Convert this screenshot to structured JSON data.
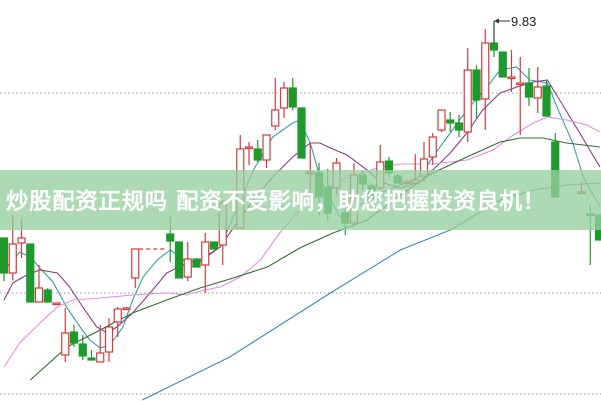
{
  "banner": {
    "text": "炒股配资正规吗 配资不受影响，助您把握投资良机！"
  },
  "chart_data": {
    "type": "candlestick",
    "title": "",
    "xlabel": "",
    "ylabel": "",
    "grid": true,
    "gridlines": [
      9.11,
      7.11,
      6.1
    ],
    "colors": {
      "up": "#d43a3a",
      "down": "#1e9a2c"
    },
    "peak_annotation": {
      "label": "9.83",
      "slot": 56,
      "value": 9.83
    },
    "candles": [
      {
        "slot": 0,
        "o": 7.66,
        "h": 7.66,
        "l": 7.23,
        "c": 7.31
      },
      {
        "slot": 1,
        "o": 7.31,
        "h": 7.89,
        "l": 7.24,
        "c": 7.6
      },
      {
        "slot": 2,
        "o": 7.61,
        "h": 7.85,
        "l": 7.46,
        "c": 7.66
      },
      {
        "slot": 3,
        "o": 7.6,
        "h": 7.6,
        "l": 7.02,
        "c": 7.02
      },
      {
        "slot": 4,
        "o": 7.02,
        "h": 7.39,
        "l": 7.02,
        "c": 7.16
      },
      {
        "slot": 5,
        "o": 7.14,
        "h": 7.16,
        "l": 7.02,
        "c": 7.02
      },
      {
        "slot": 6,
        "o": 7.01,
        "h": 7.01,
        "l": 7.01,
        "c": 7.01
      },
      {
        "slot": 7,
        "o": 6.49,
        "h": 6.96,
        "l": 6.42,
        "c": 6.71
      },
      {
        "slot": 8,
        "o": 6.72,
        "h": 6.79,
        "l": 6.57,
        "c": 6.61
      },
      {
        "slot": 9,
        "o": 6.6,
        "h": 6.69,
        "l": 6.44,
        "c": 6.48
      },
      {
        "slot": 10,
        "o": 6.46,
        "h": 6.54,
        "l": 6.44,
        "c": 6.44
      },
      {
        "slot": 11,
        "o": 6.42,
        "h": 6.79,
        "l": 6.42,
        "c": 6.51
      },
      {
        "slot": 12,
        "o": 6.52,
        "h": 6.86,
        "l": 6.42,
        "c": 6.77
      },
      {
        "slot": 13,
        "o": 6.82,
        "h": 6.97,
        "l": 6.67,
        "c": 6.95
      },
      {
        "slot": 14,
        "o": 6.96,
        "h": 6.97,
        "l": 6.96,
        "c": 6.96
      },
      {
        "slot": 15,
        "o": 7.26,
        "h": 7.55,
        "l": 7.16,
        "c": 7.55
      },
      {
        "slot": 19,
        "o": 7.7,
        "h": 7.88,
        "l": 7.42,
        "c": 7.63
      },
      {
        "slot": 20,
        "o": 7.62,
        "h": 7.62,
        "l": 7.26,
        "c": 7.26
      },
      {
        "slot": 21,
        "o": 7.27,
        "h": 7.62,
        "l": 7.23,
        "c": 7.45
      },
      {
        "slot": 22,
        "o": 7.45,
        "h": 7.45,
        "l": 7.37,
        "c": 7.37
      },
      {
        "slot": 23,
        "o": 7.39,
        "h": 7.71,
        "l": 7.11,
        "c": 7.62
      },
      {
        "slot": 24,
        "o": 7.62,
        "h": 7.62,
        "l": 7.55,
        "c": 7.55
      },
      {
        "slot": 25,
        "o": 7.59,
        "h": 8.04,
        "l": 7.39,
        "c": 8.01
      },
      {
        "slot": 27,
        "o": 7.76,
        "h": 8.69,
        "l": 7.76,
        "c": 8.55
      },
      {
        "slot": 28,
        "o": 8.56,
        "h": 8.62,
        "l": 8.39,
        "c": 8.57
      },
      {
        "slot": 29,
        "o": 8.55,
        "h": 8.64,
        "l": 8.42,
        "c": 8.44
      },
      {
        "slot": 30,
        "o": 8.44,
        "h": 8.69,
        "l": 8.36,
        "c": 8.69
      },
      {
        "slot": 31,
        "o": 8.78,
        "h": 9.26,
        "l": 8.74,
        "c": 8.94
      },
      {
        "slot": 32,
        "o": 8.96,
        "h": 9.22,
        "l": 8.86,
        "c": 9.16
      },
      {
        "slot": 33,
        "o": 9.16,
        "h": 9.26,
        "l": 8.94,
        "c": 8.97
      },
      {
        "slot": 34,
        "o": 8.96,
        "h": 8.96,
        "l": 8.46,
        "c": 8.46
      },
      {
        "slot": 35,
        "o": 8.31,
        "h": 8.61,
        "l": 8.11,
        "c": 8.32
      },
      {
        "slot": 36,
        "o": 8.31,
        "h": 8.41,
        "l": 7.89,
        "c": 8.07
      },
      {
        "slot": 37,
        "o": 8.17,
        "h": 8.35,
        "l": 7.84,
        "c": 7.91
      },
      {
        "slot": 38,
        "o": 8.16,
        "h": 8.46,
        "l": 8.09,
        "c": 8.41
      },
      {
        "slot": 39,
        "o": 7.91,
        "h": 7.97,
        "l": 7.69,
        "c": 7.81
      },
      {
        "slot": 40,
        "o": 7.81,
        "h": 8.41,
        "l": 7.79,
        "c": 8.29
      },
      {
        "slot": 41,
        "o": 8.29,
        "h": 8.33,
        "l": 8.14,
        "c": 8.2
      },
      {
        "slot": 42,
        "o": 8.18,
        "h": 8.2,
        "l": 8.03,
        "c": 8.05
      },
      {
        "slot": 43,
        "o": 8.16,
        "h": 8.59,
        "l": 8.14,
        "c": 8.42
      },
      {
        "slot": 44,
        "o": 8.43,
        "h": 8.47,
        "l": 8.27,
        "c": 8.31
      },
      {
        "slot": 45,
        "o": 8.28,
        "h": 8.3,
        "l": 8.21,
        "c": 8.21
      },
      {
        "slot": 46,
        "o": 8.21,
        "h": 8.24,
        "l": 8.19,
        "c": 8.22
      },
      {
        "slot": 47,
        "o": 8.21,
        "h": 8.5,
        "l": 8.2,
        "c": 8.24
      },
      {
        "slot": 48,
        "o": 8.28,
        "h": 8.62,
        "l": 8.22,
        "c": 8.45
      },
      {
        "slot": 49,
        "o": 8.47,
        "h": 8.71,
        "l": 8.39,
        "c": 8.67
      },
      {
        "slot": 50,
        "o": 8.74,
        "h": 8.94,
        "l": 8.72,
        "c": 8.94
      },
      {
        "slot": 51,
        "o": 8.84,
        "h": 8.92,
        "l": 8.72,
        "c": 8.81
      },
      {
        "slot": 52,
        "o": 8.81,
        "h": 8.89,
        "l": 8.67,
        "c": 8.74
      },
      {
        "slot": 53,
        "o": 8.72,
        "h": 9.56,
        "l": 8.62,
        "c": 9.34
      },
      {
        "slot": 54,
        "o": 9.34,
        "h": 9.39,
        "l": 8.86,
        "c": 9.04
      },
      {
        "slot": 55,
        "o": 9.05,
        "h": 9.75,
        "l": 8.74,
        "c": 9.61
      },
      {
        "slot": 56,
        "o": 9.61,
        "h": 9.83,
        "l": 9.47,
        "c": 9.54
      },
      {
        "slot": 57,
        "o": 9.52,
        "h": 9.52,
        "l": 9.27,
        "c": 9.27
      },
      {
        "slot": 58,
        "o": 9.26,
        "h": 9.54,
        "l": 9.12,
        "c": 9.27
      },
      {
        "slot": 59,
        "o": 9.2,
        "h": 9.47,
        "l": 8.69,
        "c": 9.21
      },
      {
        "slot": 60,
        "o": 9.21,
        "h": 9.36,
        "l": 8.98,
        "c": 9.07
      },
      {
        "slot": 61,
        "o": 9.06,
        "h": 9.37,
        "l": 8.91,
        "c": 9.17
      },
      {
        "slot": 62,
        "o": 9.18,
        "h": 9.24,
        "l": 8.88,
        "c": 8.88
      },
      {
        "slot": 63,
        "o": 8.62,
        "h": 8.71,
        "l": 8.07,
        "c": 8.07
      },
      {
        "slot": 66,
        "o": 8.12,
        "h": 8.22,
        "l": 8.1,
        "c": 8.12
      },
      {
        "slot": 67,
        "o": 7.9,
        "h": 7.99,
        "l": 7.39,
        "c": 7.89
      },
      {
        "slot": 68,
        "o": 7.89,
        "h": 7.89,
        "l": 7.64,
        "c": 7.64
      }
    ],
    "moving_averages": [
      {
        "color": "#3a9ea8",
        "points": [
          [
            0,
            7.34
          ],
          [
            1.8,
            7.52
          ],
          [
            3,
            7.47
          ],
          [
            4.1,
            7.36
          ],
          [
            5.6,
            7.22
          ],
          [
            7.2,
            6.96
          ],
          [
            8.7,
            6.77
          ],
          [
            9.8,
            6.64
          ],
          [
            11,
            6.56
          ],
          [
            12.1,
            6.59
          ],
          [
            13.6,
            6.77
          ],
          [
            14.7,
            7.04
          ],
          [
            15.9,
            7.27
          ],
          [
            17.5,
            7.44
          ],
          [
            19,
            7.54
          ],
          [
            20.1,
            7.47
          ],
          [
            21.6,
            7.37
          ],
          [
            22.4,
            7.42
          ],
          [
            24.7,
            7.57
          ],
          [
            26.2,
            7.87
          ],
          [
            28.5,
            8.34
          ],
          [
            30.7,
            8.67
          ],
          [
            33,
            8.81
          ],
          [
            33.8,
            8.84
          ],
          [
            35,
            8.61
          ],
          [
            36.1,
            8.27
          ],
          [
            36.9,
            8.11
          ],
          [
            38.4,
            7.87
          ],
          [
            39.9,
            7.94
          ],
          [
            41.5,
            8.04
          ],
          [
            43,
            8.11
          ],
          [
            45.3,
            8.19
          ],
          [
            47.5,
            8.27
          ],
          [
            49,
            8.47
          ],
          [
            51,
            8.71
          ],
          [
            52.9,
            8.94
          ],
          [
            55.2,
            9.17
          ],
          [
            56.7,
            9.34
          ],
          [
            58.6,
            9.37
          ],
          [
            60.1,
            9.24
          ],
          [
            62.1,
            9.21
          ],
          [
            63.2,
            8.97
          ],
          [
            65,
            8.61
          ],
          [
            66.2,
            8.27
          ],
          [
            68.1,
            7.97
          ]
        ]
      },
      {
        "color": "#8a3c86",
        "points": [
          [
            0,
            7.04
          ],
          [
            1,
            7.21
          ],
          [
            2.6,
            7.29
          ],
          [
            4.1,
            7.34
          ],
          [
            6.1,
            7.31
          ],
          [
            7.5,
            7.17
          ],
          [
            9,
            6.97
          ],
          [
            10.6,
            6.77
          ],
          [
            11.8,
            6.71
          ],
          [
            12.9,
            6.77
          ],
          [
            14.7,
            6.91
          ],
          [
            16.7,
            7.11
          ],
          [
            18.6,
            7.31
          ],
          [
            20.9,
            7.41
          ],
          [
            22.4,
            7.44
          ],
          [
            24.7,
            7.57
          ],
          [
            26.6,
            7.81
          ],
          [
            28.5,
            8.04
          ],
          [
            30.7,
            8.27
          ],
          [
            33,
            8.47
          ],
          [
            35,
            8.61
          ],
          [
            36.1,
            8.61
          ],
          [
            37.3,
            8.56
          ],
          [
            39.2,
            8.49
          ],
          [
            41.5,
            8.34
          ],
          [
            43,
            8.22
          ],
          [
            45.3,
            8.16
          ],
          [
            47.5,
            8.22
          ],
          [
            49,
            8.34
          ],
          [
            51,
            8.51
          ],
          [
            52.9,
            8.71
          ],
          [
            54.7,
            8.94
          ],
          [
            56.7,
            9.11
          ],
          [
            58.6,
            9.17
          ],
          [
            60.5,
            9.22
          ],
          [
            62.1,
            9.24
          ],
          [
            63.5,
            9.04
          ],
          [
            65.8,
            8.71
          ],
          [
            68.1,
            8.37
          ]
        ]
      },
      {
        "color": "#e58fe2",
        "points": [
          [
            0,
            6.37
          ],
          [
            1.8,
            6.61
          ],
          [
            4.1,
            6.81
          ],
          [
            6.1,
            6.97
          ],
          [
            7.9,
            7.04
          ],
          [
            11,
            7.06
          ],
          [
            14.7,
            7.09
          ],
          [
            18.6,
            7.11
          ],
          [
            20.9,
            7.09
          ],
          [
            22.4,
            7.13
          ],
          [
            24.7,
            7.17
          ],
          [
            27,
            7.27
          ],
          [
            29.3,
            7.44
          ],
          [
            31.5,
            7.71
          ],
          [
            33.8,
            7.94
          ],
          [
            36.1,
            8.11
          ],
          [
            38.4,
            8.24
          ],
          [
            43,
            8.37
          ],
          [
            45.3,
            8.4
          ],
          [
            49,
            8.4
          ],
          [
            52.9,
            8.44
          ],
          [
            55.9,
            8.54
          ],
          [
            58.2,
            8.69
          ],
          [
            60.5,
            8.81
          ],
          [
            62.1,
            8.87
          ],
          [
            64.3,
            8.84
          ],
          [
            66.6,
            8.79
          ],
          [
            68.1,
            8.72
          ]
        ]
      },
      {
        "color": "#2f6e30",
        "points": [
          [
            3,
            6.24
          ],
          [
            7.2,
            6.57
          ],
          [
            11,
            6.74
          ],
          [
            14.7,
            6.91
          ],
          [
            18.6,
            7.04
          ],
          [
            22.4,
            7.16
          ],
          [
            26.2,
            7.26
          ],
          [
            30.1,
            7.37
          ],
          [
            33.8,
            7.56
          ],
          [
            37.6,
            7.71
          ],
          [
            41.5,
            7.84
          ],
          [
            43.8,
            7.99
          ],
          [
            45.3,
            8.09
          ],
          [
            49,
            8.31
          ],
          [
            52.9,
            8.47
          ],
          [
            56.7,
            8.62
          ],
          [
            59,
            8.66
          ],
          [
            61.6,
            8.66
          ],
          [
            64.3,
            8.61
          ],
          [
            68.1,
            8.57
          ]
        ]
      },
      {
        "color": "#3a8cb4",
        "points": [
          [
            15.8,
            6.04
          ],
          [
            25.8,
            6.47
          ],
          [
            37.3,
            7.11
          ],
          [
            45.3,
            7.54
          ],
          [
            51,
            7.74
          ],
          [
            56.7,
            8.04
          ],
          [
            60.5,
            8.14
          ],
          [
            64.3,
            8.19
          ],
          [
            68.1,
            8.21
          ]
        ]
      }
    ]
  }
}
